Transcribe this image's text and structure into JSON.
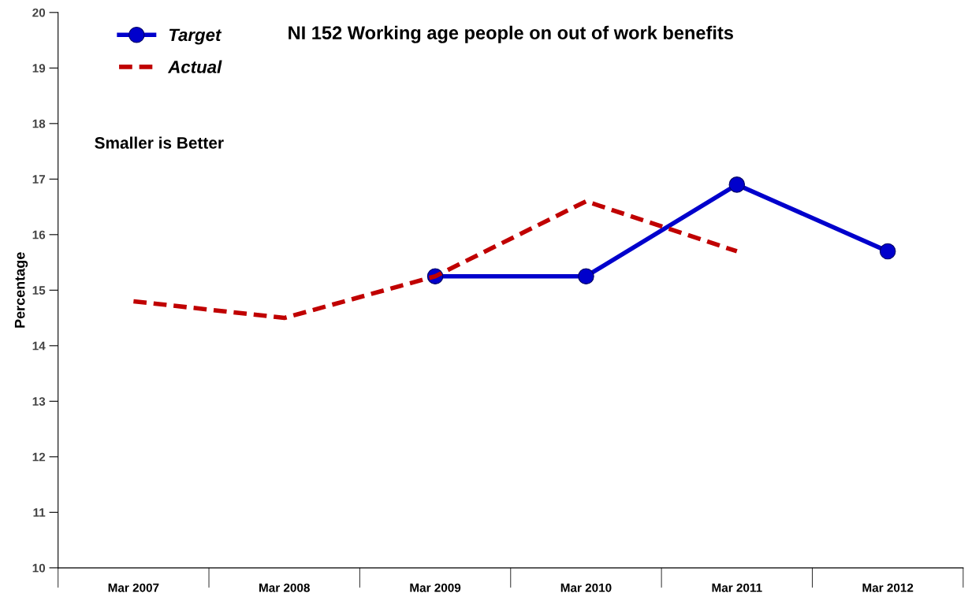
{
  "chart_data": {
    "type": "line",
    "title": "NI 152 Working age people on out of work benefits",
    "ylabel": "Percentage",
    "categories": [
      "Mar 2007",
      "Mar 2008",
      "Mar 2009",
      "Mar 2010",
      "Mar 2011",
      "Mar 2012"
    ],
    "series": [
      {
        "name": "Target",
        "color": "#0000cc",
        "marker": "circle",
        "line_style": "solid",
        "values": [
          null,
          null,
          15.25,
          15.25,
          16.9,
          15.7
        ]
      },
      {
        "name": "Actual",
        "color": "#c00000",
        "marker": "none",
        "line_style": "dashed",
        "values": [
          14.8,
          14.5,
          15.25,
          16.6,
          15.7,
          null
        ]
      }
    ],
    "ylim": [
      10,
      20
    ],
    "yticks": [
      10,
      11,
      12,
      13,
      14,
      15,
      16,
      17,
      18,
      19,
      20
    ],
    "annotations": [
      "Smaller is Better"
    ],
    "legend": "top left",
    "grid": false
  }
}
